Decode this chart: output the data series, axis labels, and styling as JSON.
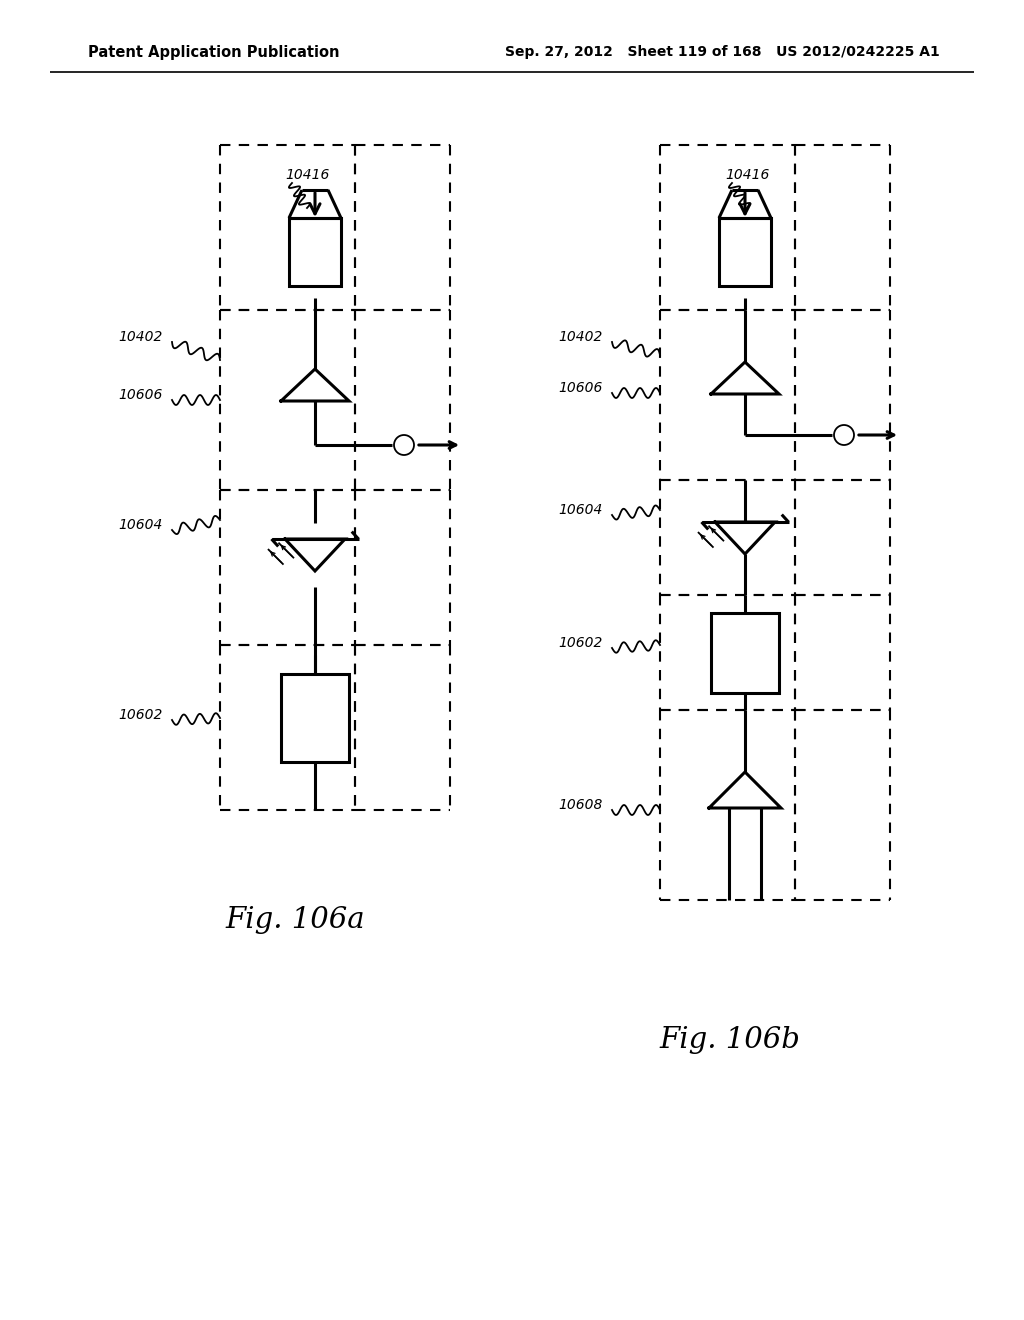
{
  "header_left": "Patent Application Publication",
  "header_right": "Sep. 27, 2012   Sheet 119 of 168   US 2012/0242225 A1",
  "fig_a_label": "Fig. 106a",
  "fig_b_label": "Fig. 106b",
  "bg_color": "#ffffff"
}
